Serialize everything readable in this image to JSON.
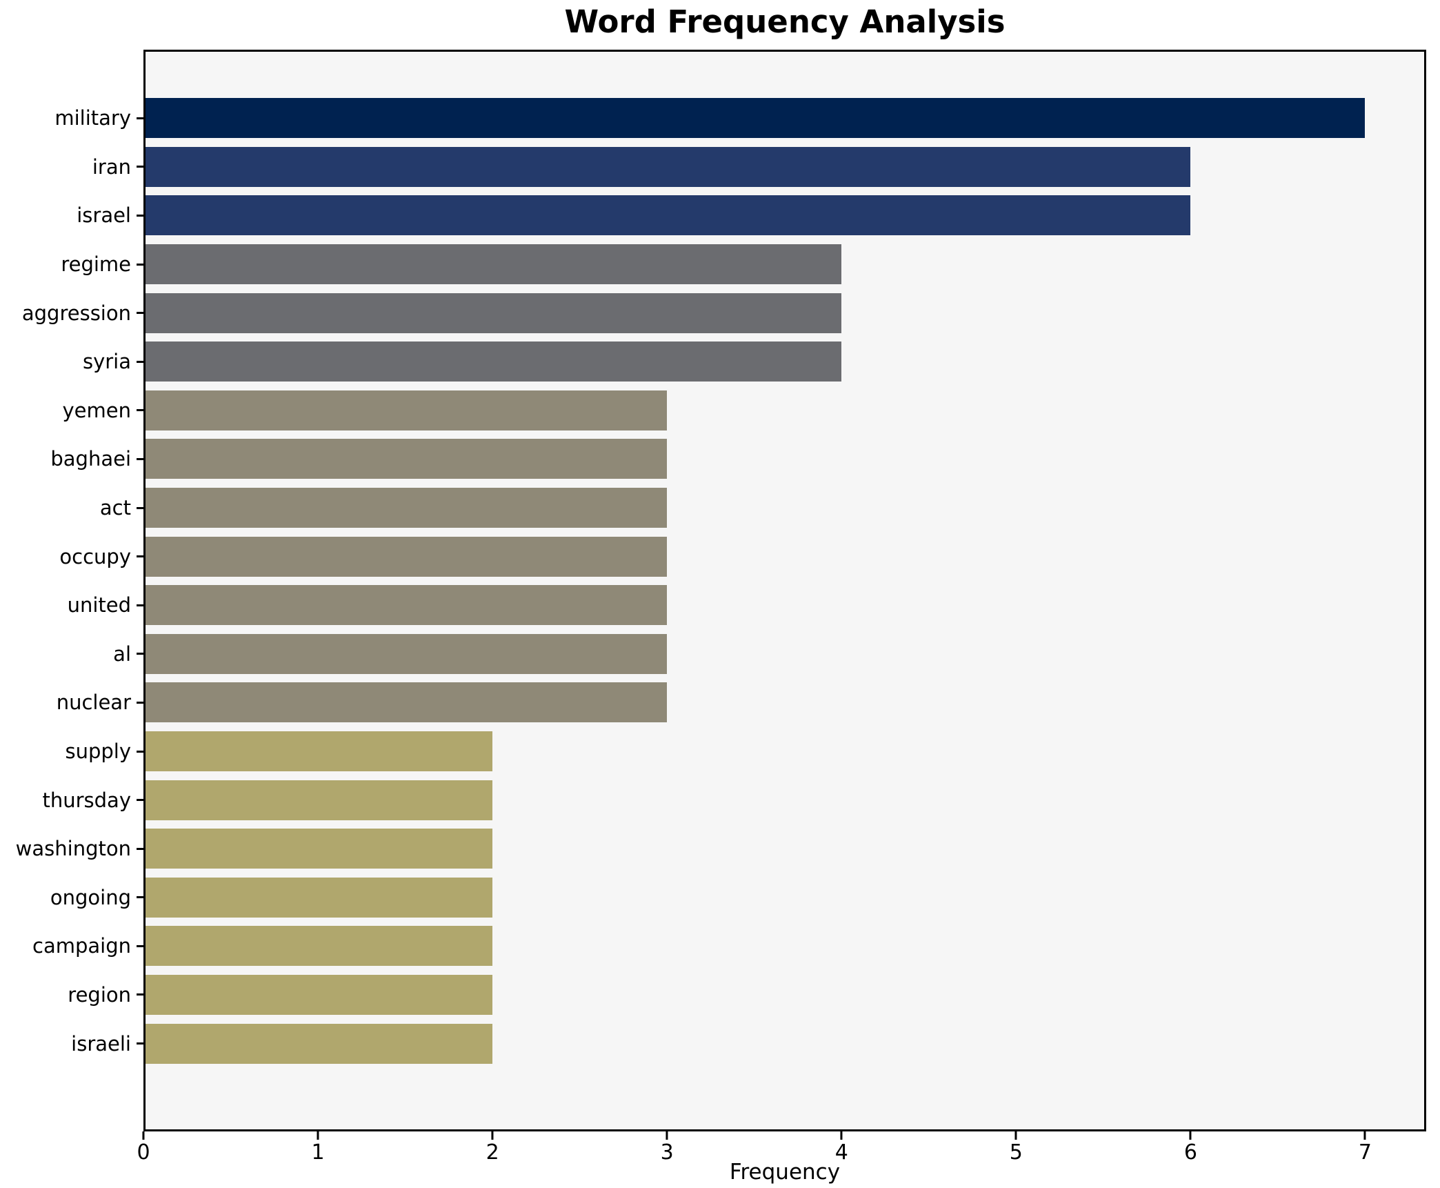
{
  "chart_data": {
    "type": "bar",
    "orientation": "horizontal",
    "title": "Word Frequency Analysis",
    "xlabel": "Frequency",
    "ylabel": "",
    "categories": [
      "military",
      "iran",
      "israel",
      "regime",
      "aggression",
      "syria",
      "yemen",
      "baghaei",
      "act",
      "occupy",
      "united",
      "al",
      "nuclear",
      "supply",
      "thursday",
      "washington",
      "ongoing",
      "campaign",
      "region",
      "israeli"
    ],
    "values": [
      7,
      6,
      6,
      4,
      4,
      4,
      3,
      3,
      3,
      3,
      3,
      3,
      3,
      2,
      2,
      2,
      2,
      2,
      2,
      2
    ],
    "bar_colors": [
      "#002250",
      "#243a6b",
      "#243a6b",
      "#6b6c70",
      "#6b6c70",
      "#6b6c70",
      "#8f8977",
      "#8f8977",
      "#8f8977",
      "#8f8977",
      "#8f8977",
      "#8f8977",
      "#8f8977",
      "#b0a76d",
      "#b0a76d",
      "#b0a76d",
      "#b0a76d",
      "#b0a76d",
      "#b0a76d",
      "#b0a76d"
    ],
    "xticks": [
      0,
      1,
      2,
      3,
      4,
      5,
      6,
      7
    ],
    "xlim": [
      0,
      7.35
    ],
    "grid": false,
    "legend": "none",
    "plot_background": "#f6f6f6",
    "figure_background": "#ffffff",
    "spine_color": "#000000",
    "text_color": "#000000"
  }
}
